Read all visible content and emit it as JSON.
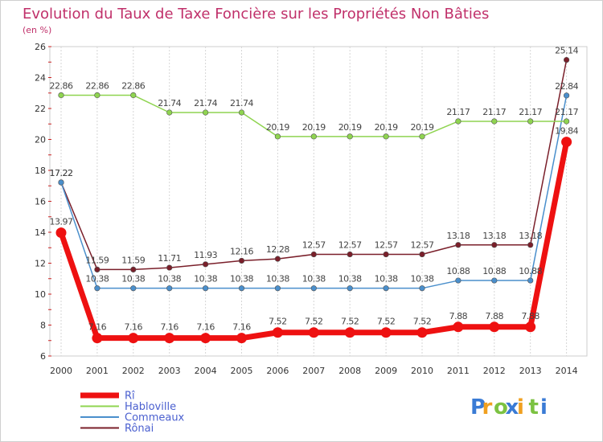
{
  "chart_data": {
    "type": "line",
    "title": "Evolution du Taux de Taxe Foncière sur les Propriétés Non Bâties",
    "ylabel": "(en %)",
    "xlabel": "",
    "ylim": [
      6,
      26
    ],
    "yticks": [
      6,
      8,
      10,
      12,
      14,
      16,
      18,
      20,
      22,
      24,
      26
    ],
    "categories": [
      "2000",
      "2001",
      "2002",
      "2003",
      "2004",
      "2005",
      "2006",
      "2007",
      "2008",
      "2009",
      "2010",
      "2011",
      "2012",
      "2013",
      "2014"
    ],
    "grid": "vertical",
    "series": [
      {
        "name": "Rônai",
        "color": "#7a1f2a",
        "values": [
          17.22,
          11.59,
          11.59,
          11.71,
          11.93,
          12.16,
          12.28,
          12.57,
          12.57,
          12.57,
          12.57,
          13.18,
          13.18,
          13.18,
          25.14
        ]
      },
      {
        "name": "Commeaux",
        "color": "#4a8fcc",
        "values": [
          17.22,
          10.38,
          10.38,
          10.38,
          10.38,
          10.38,
          10.38,
          10.38,
          10.38,
          10.38,
          10.38,
          10.88,
          10.88,
          10.88,
          22.84
        ]
      },
      {
        "name": "Habloville",
        "color": "#8fd450",
        "values": [
          22.86,
          22.86,
          22.86,
          21.74,
          21.74,
          21.74,
          20.19,
          20.19,
          20.19,
          20.19,
          20.19,
          21.17,
          21.17,
          21.17,
          21.17
        ]
      },
      {
        "name": "Rî",
        "color": "#ee1111",
        "values": [
          13.97,
          7.16,
          7.16,
          7.16,
          7.16,
          7.16,
          7.52,
          7.52,
          7.52,
          7.52,
          7.52,
          7.88,
          7.88,
          7.88,
          19.84
        ]
      }
    ],
    "labels": {
      "Rônai": [
        "17.22",
        "11.59",
        "11.59",
        "11.71",
        "11.93",
        "12.16",
        "12.28",
        "12.57",
        "12.57",
        "12.57",
        "12.57",
        "13.18",
        "13.18",
        "13.18",
        "25.14"
      ],
      "Commeaux": [
        "17.22",
        "10.38",
        "10.38",
        "10.38",
        "10.38",
        "10.38",
        "10.38",
        "10.38",
        "10.38",
        "10.38",
        "10.38",
        "10.88",
        "10.88",
        "10.88",
        "22.84"
      ],
      "Habloville": [
        "22.86",
        "22.86",
        "22.86",
        "21.74",
        "21.74",
        "21.74",
        "20.19",
        "20.19",
        "20.19",
        "20.19",
        "20.19",
        "21.17",
        "21.17",
        "21.17",
        "21.17"
      ],
      "Rî": [
        "13.97",
        "7.16",
        "7.16",
        "7.16",
        "7.16",
        "7.16",
        "7.52",
        "7.52",
        "7.52",
        "7.52",
        "7.52",
        "7.88",
        "7.88",
        "7.88",
        "19.84"
      ]
    },
    "legend": [
      "Rî",
      "Commeaux",
      "Habloville",
      "Rônai"
    ],
    "legend_position": "bottom-left"
  },
  "logo": {
    "letters": [
      "P",
      "r",
      "o",
      "x",
      "i",
      "t",
      "i"
    ],
    "colors": [
      "#3a7bd5",
      "#f0a020",
      "#7cc242",
      "#3a7bd5",
      "#f0a020",
      "#7cc242",
      "#3a7bd5"
    ]
  }
}
